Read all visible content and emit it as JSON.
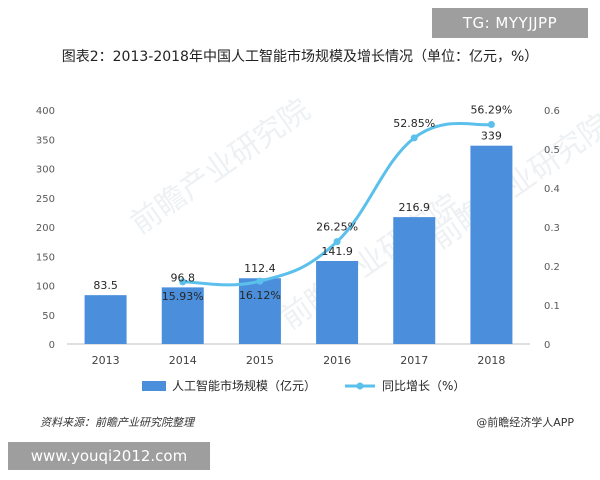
{
  "overlay_tag": "TG: MYYJJPP",
  "site_watermark": "www.youqi2012.com",
  "source_text": "资料来源：前瞻产业研究院整理",
  "credit_text": "@前瞻经济学人APP",
  "chart_data": {
    "type": "bar",
    "title": "图表2：2013-2018年中国人工智能市场规模及增长情况（单位：亿元，%）",
    "categories": [
      "2013",
      "2014",
      "2015",
      "2016",
      "2017",
      "2018"
    ],
    "series": [
      {
        "name": "人工智能市场规模（亿元）",
        "type": "bar",
        "axis": "left",
        "color": "#4b8fdc",
        "values": [
          83.5,
          96.8,
          112.4,
          141.9,
          216.9,
          339
        ],
        "labels": [
          "83.5",
          "96.8",
          "112.4",
          "141.9",
          "216.9",
          "339"
        ]
      },
      {
        "name": "同比增长（%）",
        "type": "line",
        "axis": "right",
        "color": "#5bc0eb",
        "x": [
          "2014",
          "2015",
          "2016",
          "2017",
          "2018"
        ],
        "values": [
          0.1593,
          0.1612,
          0.2625,
          0.5285,
          0.5629
        ],
        "labels": [
          "15.93%",
          "16.12%",
          "26.25%",
          "52.85%",
          "56.29%"
        ]
      }
    ],
    "y_left": {
      "min": 0,
      "max": 400,
      "ticks": [
        "0",
        "50",
        "100",
        "150",
        "200",
        "250",
        "300",
        "350",
        "400"
      ]
    },
    "y_right": {
      "min": 0,
      "max": 0.6,
      "ticks": [
        "0",
        "0.1",
        "0.2",
        "0.3",
        "0.4",
        "0.5",
        "0.6"
      ]
    },
    "grid": false,
    "legend_position": "bottom"
  }
}
